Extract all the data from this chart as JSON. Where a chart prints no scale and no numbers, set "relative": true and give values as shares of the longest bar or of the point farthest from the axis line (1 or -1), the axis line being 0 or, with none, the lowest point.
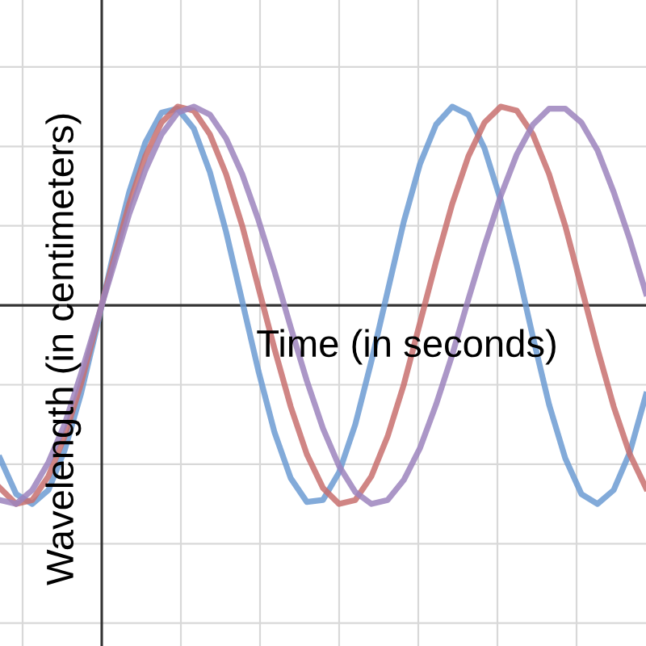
{
  "chart_data": {
    "type": "line",
    "relative": true,
    "xlabel": "Time (in seconds)",
    "ylabel": "Wavelength (in centimeters)",
    "grid": true,
    "marker": "none",
    "line_style": "solid",
    "categories": [
      null,
      null,
      null,
      null,
      null,
      null,
      null,
      null,
      null,
      null,
      null,
      null,
      null,
      null,
      null,
      null,
      null,
      null,
      null,
      null,
      null,
      null,
      null,
      null,
      null,
      null,
      null,
      null,
      null,
      null,
      null,
      null,
      null,
      null,
      null,
      null,
      null,
      null,
      null,
      null,
      null
    ],
    "series": [
      {
        "color": "#6c9bd2",
        "values": [
          -0.77,
          -0.95,
          -1.0,
          -0.93,
          -0.73,
          -0.45,
          -0.11,
          0.25,
          0.57,
          0.82,
          0.97,
          0.99,
          0.89,
          0.67,
          0.37,
          0.02,
          -0.33,
          -0.64,
          -0.87,
          -0.99,
          -0.98,
          -0.84,
          -0.6,
          -0.28,
          0.07,
          0.42,
          0.71,
          0.91,
          1.0,
          0.96,
          0.79,
          0.53,
          0.2,
          -0.16,
          -0.5,
          -0.77,
          -0.95,
          -1.0,
          -0.93,
          -0.74,
          -0.45
        ]
      },
      {
        "color": "#c8706f",
        "values": [
          -0.92,
          -1.0,
          -0.98,
          -0.86,
          -0.66,
          -0.4,
          -0.09,
          0.22,
          0.51,
          0.75,
          0.92,
          1.0,
          0.98,
          0.86,
          0.66,
          0.4,
          0.09,
          -0.22,
          -0.51,
          -0.75,
          -0.92,
          -1.0,
          -0.98,
          -0.86,
          -0.66,
          -0.4,
          -0.09,
          0.22,
          0.51,
          0.75,
          0.92,
          1.0,
          0.98,
          0.86,
          0.66,
          0.4,
          0.09,
          -0.22,
          -0.51,
          -0.75,
          -0.92
        ]
      },
      {
        "color": "#9c84bd",
        "values": [
          -0.98,
          -1.0,
          -0.93,
          -0.79,
          -0.6,
          -0.35,
          -0.08,
          0.19,
          0.46,
          0.68,
          0.86,
          0.97,
          1.0,
          0.96,
          0.84,
          0.66,
          0.43,
          0.17,
          -0.11,
          -0.38,
          -0.62,
          -0.81,
          -0.94,
          -1.0,
          -0.98,
          -0.88,
          -0.72,
          -0.5,
          -0.25,
          0.03,
          0.3,
          0.55,
          0.76,
          0.91,
          0.99,
          0.99,
          0.92,
          0.78,
          0.57,
          0.33,
          0.06
        ]
      }
    ]
  }
}
